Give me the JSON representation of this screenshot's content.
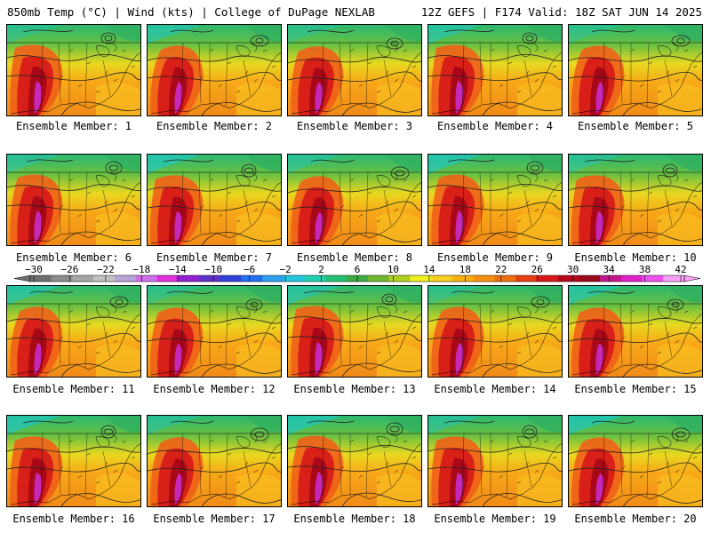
{
  "header": {
    "left": "850mb Temp (°C) | Wind (kts) | College of DuPage NEXLAB",
    "right": "12Z GEFS | F174 Valid: 18Z SAT JUN 14 2025"
  },
  "members": [
    {
      "label": "Ensemble Member: 1"
    },
    {
      "label": "Ensemble Member: 2"
    },
    {
      "label": "Ensemble Member: 3"
    },
    {
      "label": "Ensemble Member: 4"
    },
    {
      "label": "Ensemble Member: 5"
    },
    {
      "label": "Ensemble Member: 6"
    },
    {
      "label": "Ensemble Member: 7"
    },
    {
      "label": "Ensemble Member: 8"
    },
    {
      "label": "Ensemble Member: 9"
    },
    {
      "label": "Ensemble Member: 10"
    },
    {
      "label": "Ensemble Member: 11"
    },
    {
      "label": "Ensemble Member: 12"
    },
    {
      "label": "Ensemble Member: 13"
    },
    {
      "label": "Ensemble Member: 14"
    },
    {
      "label": "Ensemble Member: 15"
    },
    {
      "label": "Ensemble Member: 16"
    },
    {
      "label": "Ensemble Member: 17"
    },
    {
      "label": "Ensemble Member: 18"
    },
    {
      "label": "Ensemble Member: 19"
    },
    {
      "label": "Ensemble Member: 20"
    }
  ],
  "colorbar": {
    "tick_labels": [
      "-30",
      "-26",
      "-22",
      "-18",
      "-14",
      "-10",
      "-6",
      "-2",
      "2",
      "6",
      "10",
      "14",
      "18",
      "22",
      "26",
      "30",
      "34",
      "38",
      "42"
    ],
    "colors": [
      "#6e6e6e",
      "#8c8c8c",
      "#a6a6a6",
      "#c2c2c2",
      "#b8a4d8",
      "#d070e8",
      "#e030e0",
      "#9020d0",
      "#6030c8",
      "#3040d8",
      "#2070f0",
      "#30a0f0",
      "#20c8e0",
      "#20d0b0",
      "#20c070",
      "#40a840",
      "#70b830",
      "#b0d020",
      "#f0f020",
      "#f8d020",
      "#f8b010",
      "#f89010",
      "#f07010",
      "#e84010",
      "#d81818",
      "#b80818",
      "#980818",
      "#c0188a",
      "#e020c8",
      "#f050f0",
      "#f8a0f8"
    ]
  }
}
